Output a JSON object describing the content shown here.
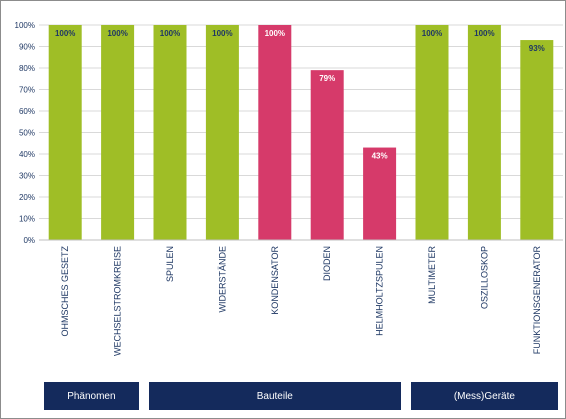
{
  "chart_data": {
    "type": "bar",
    "categories": [
      "OHMSCHES GESETZ",
      "WECHSELSTROMKREISE",
      "SPULEN",
      "WIDERSTÄNDE",
      "KONDENSATOR",
      "DIODEN",
      "HELMHOLTZSPULEN",
      "MULTIMETER",
      "OSZILLOSKOP",
      "FUNKTIONSGENERATOR"
    ],
    "values": [
      100,
      100,
      100,
      100,
      100,
      79,
      43,
      100,
      100,
      93
    ],
    "data_labels": [
      "100%",
      "100%",
      "100%",
      "100%",
      "100%",
      "79%",
      "43%",
      "100%",
      "100%",
      "93%"
    ],
    "bar_colors": [
      "#9fbe26",
      "#9fbe26",
      "#9fbe26",
      "#9fbe26",
      "#d63a6a",
      "#d63a6a",
      "#d63a6a",
      "#9fbe26",
      "#9fbe26",
      "#9fbe26"
    ],
    "label_colors": [
      "#1f3864",
      "#1f3864",
      "#1f3864",
      "#1f3864",
      "#ffffff",
      "#ffffff",
      "#ffffff",
      "#1f3864",
      "#1f3864",
      "#1f3864"
    ],
    "yticks": [
      "0%",
      "10%",
      "20%",
      "30%",
      "40%",
      "50%",
      "60%",
      "70%",
      "80%",
      "90%",
      "100%"
    ],
    "ylim": [
      0,
      100
    ],
    "grid": true,
    "groups": [
      {
        "label": "Phänomen",
        "first": 0,
        "last": 1
      },
      {
        "label": "Bauteile",
        "first": 2,
        "last": 6
      },
      {
        "label": "(Mess)Geräte",
        "first": 7,
        "last": 9
      }
    ]
  },
  "colors": {
    "green": "#9fbe26",
    "pink": "#d63a6a",
    "navy": "#142a5c",
    "grid": "#d9d9d9"
  }
}
